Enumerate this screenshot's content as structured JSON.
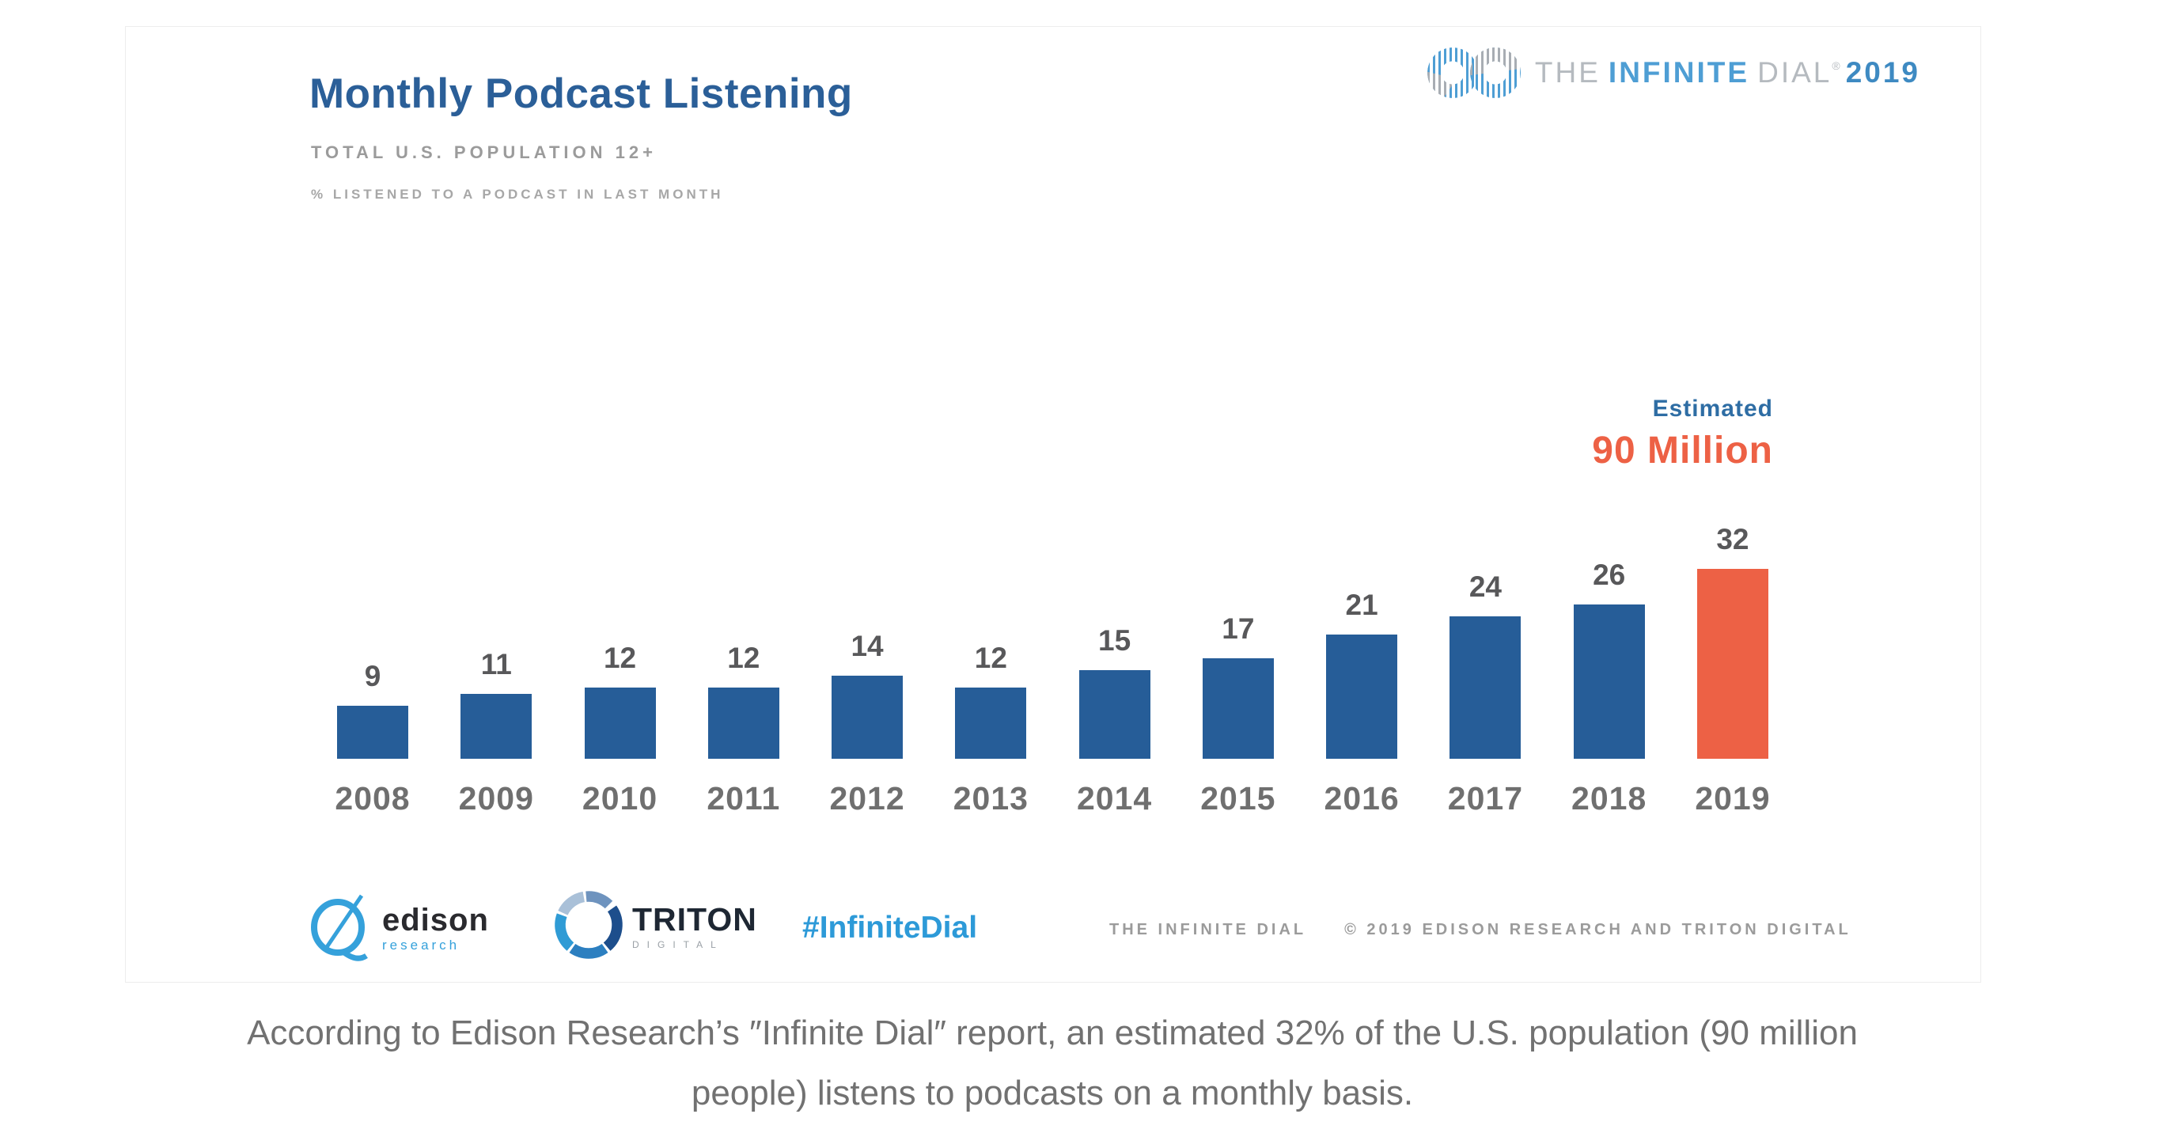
{
  "header": {
    "title": "Monthly Podcast Listening",
    "subtitle": "TOTAL U.S. POPULATION 12+",
    "note": "% LISTENED TO A PODCAST IN LAST MONTH"
  },
  "brand_logo": {
    "the": "THE",
    "infinite": "INFINITE",
    "dial": "DIAL",
    "reg": "®",
    "year": "2019"
  },
  "estimate": {
    "label": "Estimated",
    "value": "90 Million"
  },
  "chart_data": {
    "type": "bar",
    "title": "Monthly Podcast Listening",
    "subtitle": "TOTAL U.S. POPULATION 12+",
    "note": "% LISTENED TO A PODCAST IN LAST MONTH",
    "categories": [
      "2008",
      "2009",
      "2010",
      "2011",
      "2012",
      "2013",
      "2014",
      "2015",
      "2016",
      "2017",
      "2018",
      "2019"
    ],
    "values": [
      9,
      11,
      12,
      12,
      14,
      12,
      15,
      17,
      21,
      24,
      26,
      32
    ],
    "unit": "%",
    "ylim": [
      0,
      35
    ],
    "grid": false,
    "value_labels": true,
    "bar_color": "#265D98",
    "highlight_color": "#ED6145",
    "highlight_category": "2019",
    "annotation": {
      "label": "Estimated",
      "value": "90 Million",
      "applies_to": "2019"
    }
  },
  "logos": {
    "edison": {
      "name": "edison",
      "sub": "research"
    },
    "triton": {
      "name": "TRITON",
      "sub": "DIGITAL"
    },
    "hashtag": "#InfiniteDial"
  },
  "source_footer": {
    "left": "THE INFINITE DIAL",
    "right": "© 2019 EDISON RESEARCH AND TRITON DIGITAL"
  },
  "caption": {
    "line1": "According to Edison Research’s ″Infinite Dial″ report, an estimated 32% of the U.S. population (90 million",
    "line2": "people) listens to podcasts on a monthly basis."
  }
}
